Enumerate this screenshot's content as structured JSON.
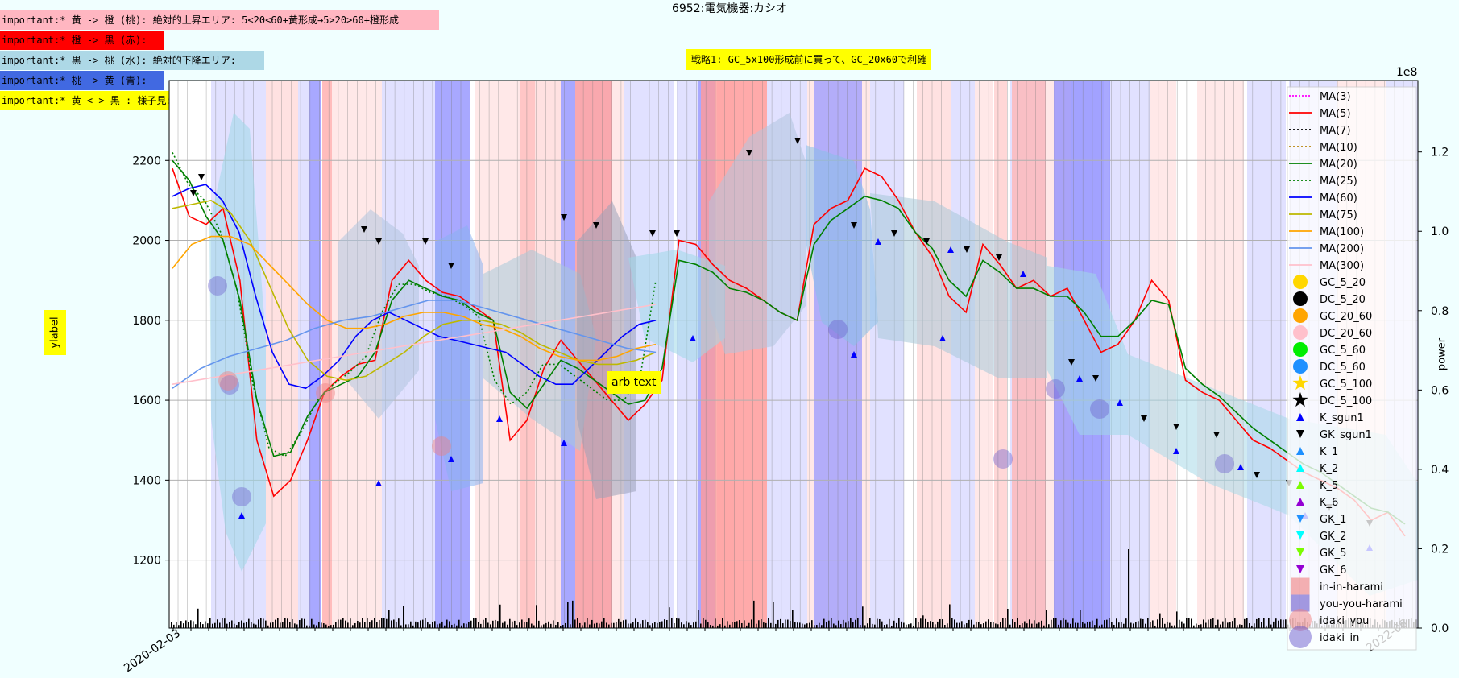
{
  "title": "6952:電気機器:カシオ",
  "notes": [
    {
      "text": "important:* 黄 -> 橙 (桃): 絶対的上昇エリア: 5<20<60+黄形成→5>20>60+橙形成",
      "bg": "#ffb6c1",
      "w": 543
    },
    {
      "text": "important:* 橙 -> 黒 (赤):",
      "bg": "#ff0000",
      "w": 202
    },
    {
      "text": "important:* 黒 -> 桃 (水): 絶対的下降エリア:",
      "bg": "#add8e6",
      "w": 326
    },
    {
      "text": "important:* 桃 -> 黄 (青):",
      "bg": "#4169e1",
      "w": 202
    },
    {
      "text": "important:* 黄 <-> 黒 : 様子見:",
      "bg": "#ffff00",
      "w": 229
    }
  ],
  "strategy": "戦略1: GC_5x100形成前に買って、GC_20x60で利確",
  "ylabel": "ylabel",
  "y2label": "power",
  "y2_exponent": "1e8",
  "annotation": "arb text",
  "legend": [
    {
      "label": "MA(3)",
      "kind": "line",
      "color": "#ff00ff",
      "dash": "2,2"
    },
    {
      "label": "MA(5)",
      "kind": "line",
      "color": "#ff0000",
      "dash": ""
    },
    {
      "label": "MA(7)",
      "kind": "line",
      "color": "#000000",
      "dash": "2,3"
    },
    {
      "label": "MA(10)",
      "kind": "line",
      "color": "#b8860b",
      "dash": "2,3"
    },
    {
      "label": "MA(20)",
      "kind": "line",
      "color": "#008000",
      "dash": ""
    },
    {
      "label": "MA(25)",
      "kind": "line",
      "color": "#008000",
      "dash": "2,3"
    },
    {
      "label": "MA(60)",
      "kind": "line",
      "color": "#0000ff",
      "dash": ""
    },
    {
      "label": "MA(75)",
      "kind": "line",
      "color": "#bdb800",
      "dash": ""
    },
    {
      "label": "MA(100)",
      "kind": "line",
      "color": "#ffa500",
      "dash": ""
    },
    {
      "label": "MA(200)",
      "kind": "line",
      "color": "#6495ed",
      "dash": ""
    },
    {
      "label": "MA(300)",
      "kind": "line",
      "color": "#ffc0cb",
      "dash": ""
    },
    {
      "label": "GC_5_20",
      "kind": "circle",
      "color": "#ffd700"
    },
    {
      "label": "DC_5_20",
      "kind": "circle",
      "color": "#000000"
    },
    {
      "label": "GC_20_60",
      "kind": "circle",
      "color": "#ffa500"
    },
    {
      "label": "DC_20_60",
      "kind": "circle",
      "color": "#ffc0cb"
    },
    {
      "label": "GC_5_60",
      "kind": "circle",
      "color": "#00ee00"
    },
    {
      "label": "DC_5_60",
      "kind": "circle",
      "color": "#1e90ff"
    },
    {
      "label": "GC_5_100",
      "kind": "star",
      "color": "#ffd700"
    },
    {
      "label": "DC_5_100",
      "kind": "star",
      "color": "#000000"
    },
    {
      "label": "K_sgun1",
      "kind": "tri-up",
      "color": "#0000ff"
    },
    {
      "label": "GK_sgun1",
      "kind": "tri-down",
      "color": "#000000"
    },
    {
      "label": "K_1",
      "kind": "tri-up",
      "color": "#1e90ff"
    },
    {
      "label": "K_2",
      "kind": "tri-up",
      "color": "#00ffff"
    },
    {
      "label": "K_5",
      "kind": "tri-up",
      "color": "#7cfc00"
    },
    {
      "label": "K_6",
      "kind": "tri-up",
      "color": "#9400d3"
    },
    {
      "label": "GK_1",
      "kind": "tri-down",
      "color": "#1e90ff"
    },
    {
      "label": "GK_2",
      "kind": "tri-down",
      "color": "#00ffff"
    },
    {
      "label": "GK_5",
      "kind": "tri-down",
      "color": "#7cfc00"
    },
    {
      "label": "GK_6",
      "kind": "tri-down",
      "color": "#9400d3"
    },
    {
      "label": "in-in-harami",
      "kind": "square",
      "color": "#f08080"
    },
    {
      "label": "you-you-harami",
      "kind": "square",
      "color": "#6a5acd"
    },
    {
      "label": "idaki_you",
      "kind": "bigcircle",
      "color": "#f08080"
    },
    {
      "label": "idaki_in",
      "kind": "bigcircle",
      "color": "#6a5acd"
    }
  ],
  "chart_data": {
    "type": "line",
    "title": "6952:電気機器:カシオ",
    "ylabel": "ylabel",
    "y2label": "power",
    "ylim": [
      1030,
      2400
    ],
    "yticks": [
      1200,
      1400,
      1600,
      1800,
      2000,
      2200
    ],
    "y2lim": [
      0,
      1.38
    ],
    "y2ticks": [
      "0.0",
      "0.2",
      "0.4",
      "0.6",
      "0.8",
      "1.0",
      "1.2"
    ],
    "y2_exponent": "1e8",
    "x_start": "2020-02-03",
    "x_end": "2022-06",
    "grid": true,
    "legend_position": "right",
    "series": [
      {
        "name": "MA(5)",
        "color": "#ff0000",
        "values": [
          2180,
          2060,
          2040,
          2080,
          1900,
          1500,
          1360,
          1400,
          1500,
          1620,
          1660,
          1690,
          1700,
          1900,
          1950,
          1900,
          1870,
          1860,
          1830,
          1800,
          1500,
          1550,
          1680,
          1750,
          1700,
          1650,
          1600,
          1550,
          1590,
          1650,
          2000,
          1990,
          1940,
          1900,
          1880,
          1850,
          1820,
          1800,
          2040,
          2080,
          2100,
          2180,
          2160,
          2100,
          2020,
          1960,
          1860,
          1820,
          1990,
          1940,
          1880,
          1900,
          1860,
          1880,
          1800,
          1720,
          1740,
          1800,
          1900,
          1850,
          1650,
          1620,
          1600,
          1550,
          1500,
          1480,
          1450,
          1420,
          1400,
          1380,
          1350,
          1300,
          1320,
          1260
        ]
      },
      {
        "name": "MA(20)",
        "color": "#008000",
        "values": [
          2200,
          2150,
          2060,
          2000,
          1850,
          1600,
          1460,
          1470,
          1560,
          1620,
          1640,
          1660,
          1720,
          1850,
          1900,
          1880,
          1860,
          1850,
          1820,
          1800,
          1620,
          1580,
          1640,
          1700,
          1680,
          1650,
          1620,
          1590,
          1600,
          1680,
          1950,
          1940,
          1920,
          1880,
          1870,
          1850,
          1820,
          1800,
          1990,
          2050,
          2080,
          2110,
          2100,
          2080,
          2020,
          1980,
          1900,
          1860,
          1950,
          1920,
          1880,
          1880,
          1860,
          1860,
          1820,
          1760,
          1760,
          1800,
          1850,
          1840,
          1680,
          1640,
          1610,
          1570,
          1530,
          1500,
          1470,
          1440,
          1420,
          1390,
          1360,
          1330,
          1320,
          1290
        ]
      },
      {
        "name": "MA(25)",
        "color": "#008000",
        "values": [
          2220,
          2140,
          2100,
          2020,
          1880,
          1640,
          1480,
          1460,
          1520,
          1600,
          1640,
          1670,
          1710,
          1820,
          1890,
          1890,
          1870,
          1860,
          1840,
          1810,
          1650,
          1590,
          1620,
          1690,
          1690,
          1660,
          1630,
          1600,
          1600,
          1650,
          1900
        ]
      },
      {
        "name": "MA(60)",
        "color": "#0000ff",
        "values": [
          2110,
          2130,
          2140,
          2100,
          2020,
          1860,
          1720,
          1640,
          1630,
          1660,
          1700,
          1760,
          1800,
          1820,
          1800,
          1780,
          1760,
          1750,
          1740,
          1730,
          1720,
          1690,
          1660,
          1640,
          1640,
          1680,
          1720,
          1760,
          1790,
          1800
        ]
      },
      {
        "name": "MA(75)",
        "color": "#bdb800",
        "values": [
          2080,
          2090,
          2100,
          2070,
          2000,
          1890,
          1780,
          1700,
          1660,
          1650,
          1660,
          1690,
          1720,
          1760,
          1790,
          1800,
          1800,
          1790,
          1770,
          1740,
          1720,
          1700,
          1690,
          1690,
          1700,
          1720
        ]
      },
      {
        "name": "MA(100)",
        "color": "#ffa500",
        "values": [
          1930,
          1990,
          2010,
          2010,
          1990,
          1940,
          1890,
          1840,
          1800,
          1780,
          1780,
          1790,
          1810,
          1820,
          1820,
          1810,
          1790,
          1780,
          1760,
          1730,
          1710,
          1700,
          1700,
          1710,
          1730,
          1740
        ]
      },
      {
        "name": "MA(200)",
        "color": "#6495ed",
        "values": [
          1630,
          1680,
          1710,
          1730,
          1750,
          1780,
          1800,
          1810,
          1830,
          1850,
          1850,
          1830,
          1810,
          1790,
          1770,
          1750,
          1730,
          1720
        ]
      },
      {
        "name": "MA(300)",
        "color": "#ffc0cb",
        "values": [
          1640,
          1660,
          1680,
          1700,
          1720,
          1740,
          1760,
          1780,
          1800,
          1820,
          1840
        ]
      }
    ],
    "annotations": [
      "arb text"
    ]
  }
}
